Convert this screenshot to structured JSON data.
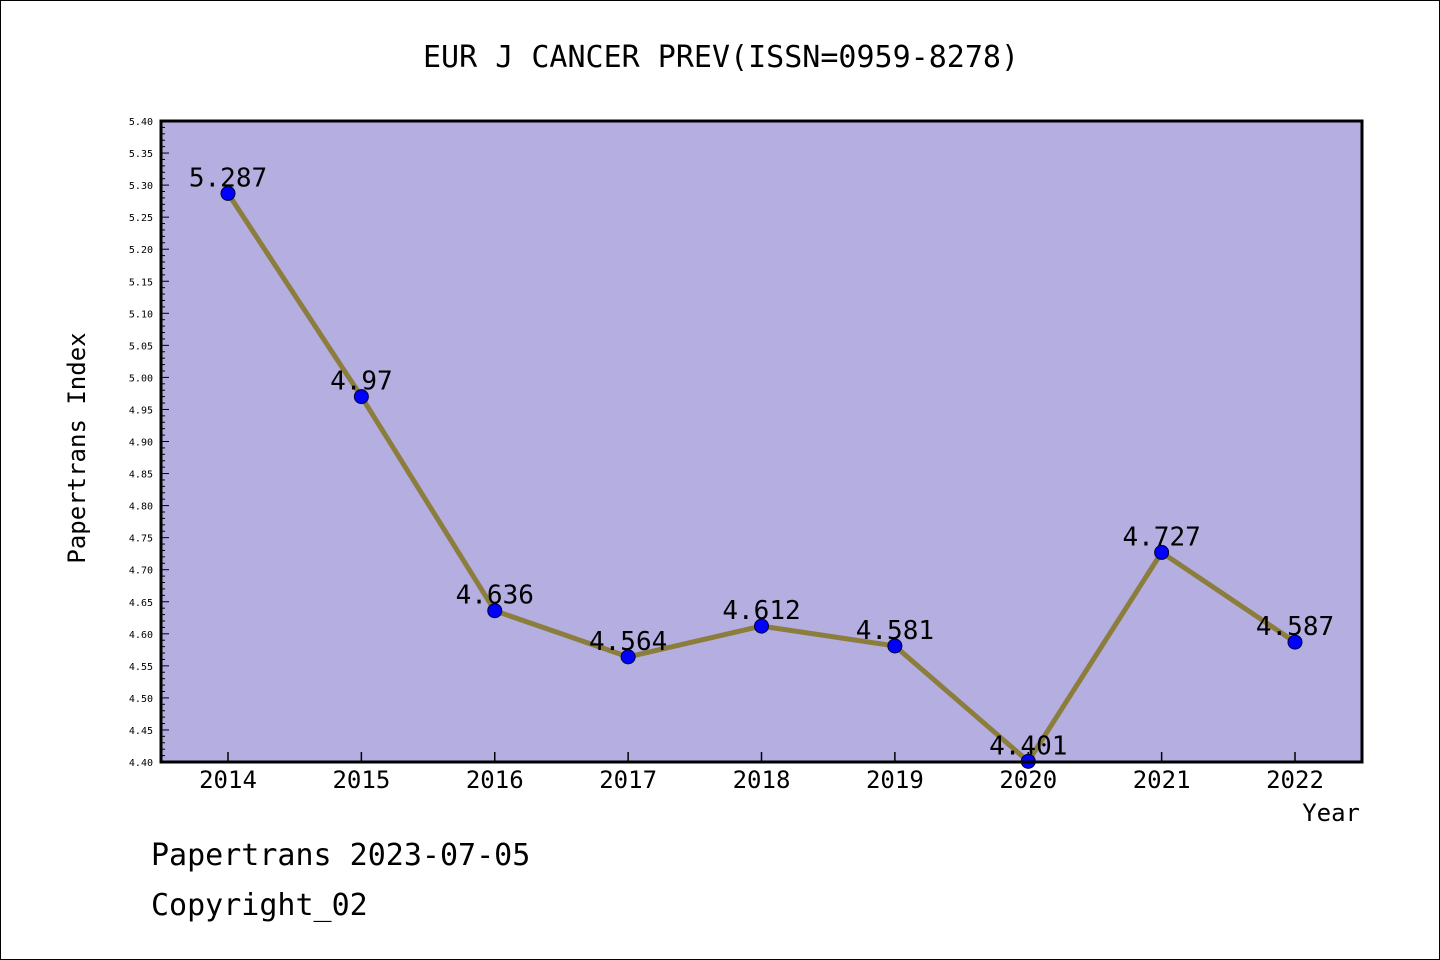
{
  "chart_data": {
    "type": "line",
    "title": "EUR J CANCER PREV(ISSN=0959-8278)",
    "xlabel": "Year",
    "ylabel": "Papertrans Index",
    "categories": [
      "2014",
      "2015",
      "2016",
      "2017",
      "2018",
      "2019",
      "2020",
      "2021",
      "2022"
    ],
    "series": [
      {
        "values": [
          5.287,
          4.97,
          4.636,
          4.564,
          4.612,
          4.581,
          4.401,
          4.727,
          4.587
        ],
        "labels": [
          "5.287",
          "4.97",
          "4.636",
          "4.564",
          "4.612",
          "4.581",
          "4.401",
          "4.727",
          "4.587"
        ]
      }
    ],
    "ylim": [
      4.4,
      5.4
    ],
    "yticks": [
      "4.40",
      "4.45",
      "4.50",
      "4.55",
      "4.60",
      "4.65",
      "4.70",
      "4.75",
      "4.80",
      "4.85",
      "4.90",
      "4.95",
      "5.00",
      "5.05",
      "5.10",
      "5.15",
      "5.20",
      "5.25",
      "5.30",
      "5.35",
      "5.40"
    ],
    "grid": false,
    "colors": {
      "plot_background": "#b4aee1",
      "line": "#8b7d3c",
      "marker": "#0000ff"
    }
  },
  "footer": {
    "line1": "Papertrans 2023-07-05",
    "line2": "Copyright_02"
  }
}
